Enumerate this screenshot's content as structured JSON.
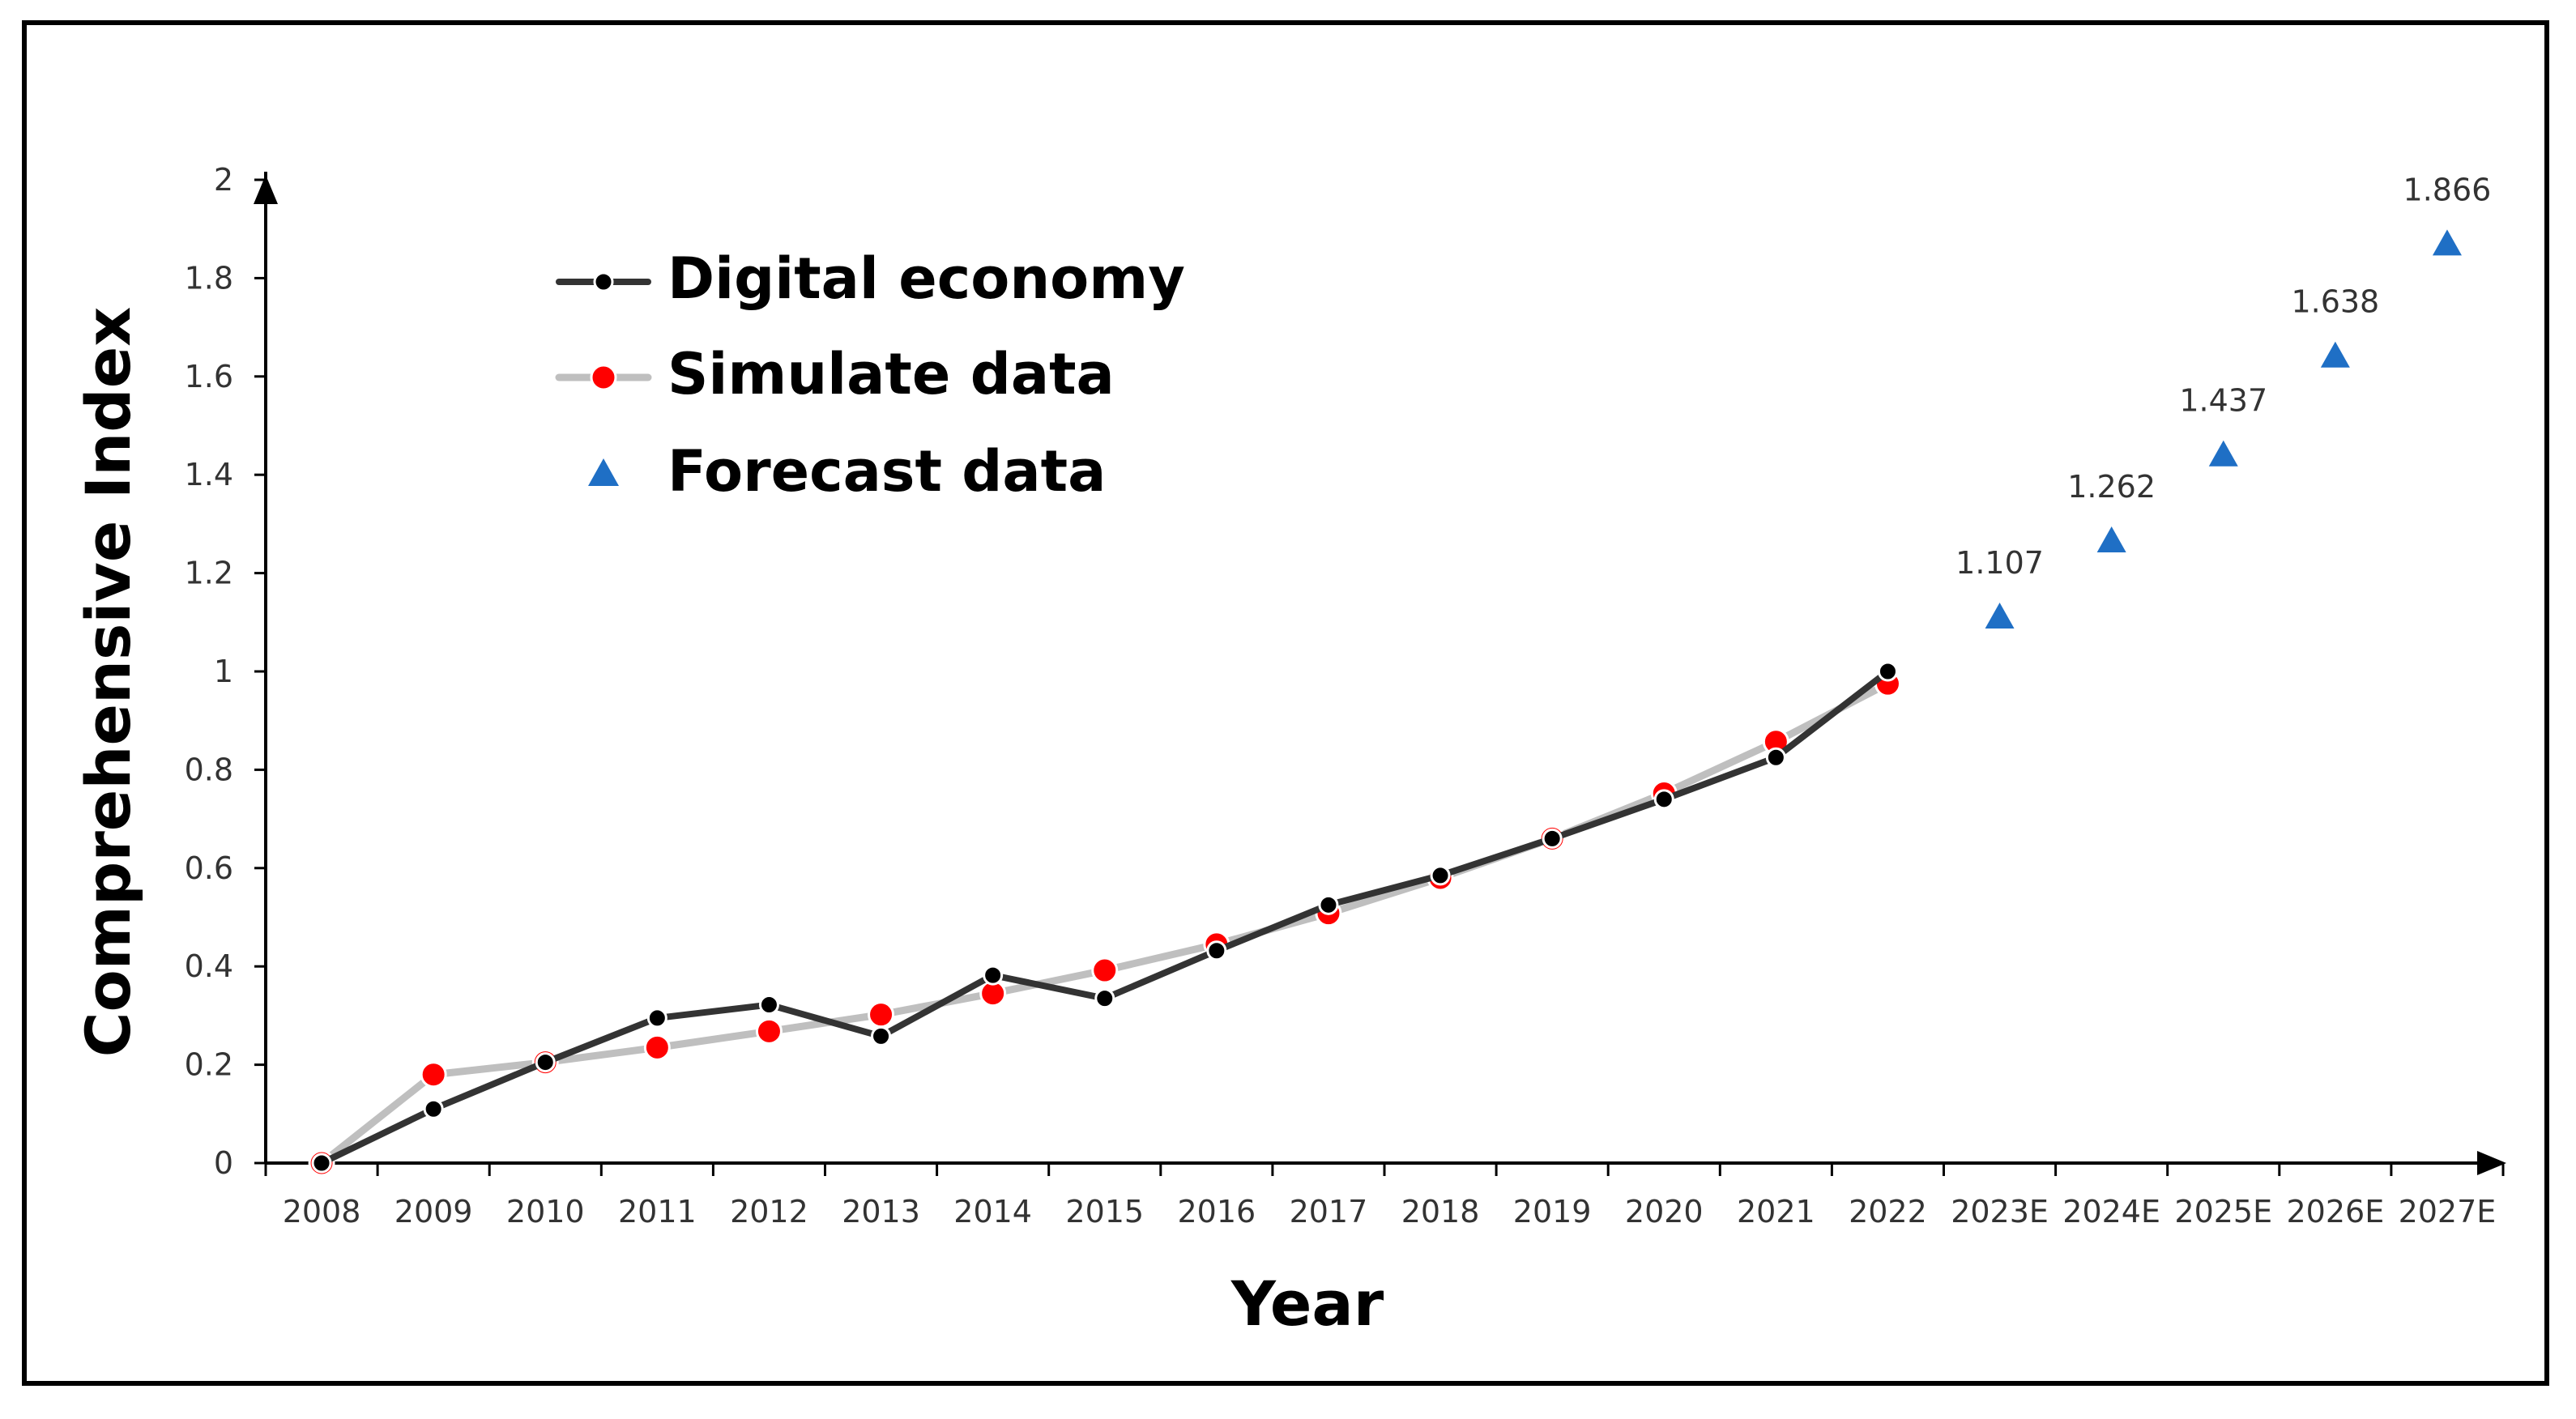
{
  "chart_data": {
    "type": "line",
    "title": "",
    "xlabel": "Year",
    "ylabel": "Comprehensive Index",
    "ylim": [
      0,
      2
    ],
    "yticks": [
      0,
      0.2,
      0.4,
      0.6,
      0.8,
      1,
      1.2,
      1.4,
      1.6,
      1.8,
      2
    ],
    "ytick_labels": [
      "0",
      "0.2",
      "0.4",
      "0.6",
      "0.8",
      "1",
      "1.2",
      "1.4",
      "1.6",
      "1.8",
      "2"
    ],
    "categories": [
      "2008",
      "2009",
      "2010",
      "2011",
      "2012",
      "2013",
      "2014",
      "2015",
      "2016",
      "2017",
      "2018",
      "2019",
      "2020",
      "2021",
      "2022",
      "2023E",
      "2024E",
      "2025E",
      "2026E",
      "2027E"
    ],
    "series": [
      {
        "name": "Digital economy",
        "marker": "circle",
        "line_color": "#333333",
        "marker_color": "#000000",
        "values": [
          0.0,
          0.11,
          0.205,
          0.295,
          0.322,
          0.258,
          0.382,
          0.335,
          0.432,
          0.525,
          0.585,
          0.66,
          0.74,
          0.825,
          1.0,
          null,
          null,
          null,
          null,
          null
        ]
      },
      {
        "name": "Simulate data",
        "marker": "circle",
        "line_color": "#bfbfbf",
        "marker_color": "#ff0000",
        "values": [
          0.0,
          0.18,
          0.205,
          0.235,
          0.268,
          0.302,
          0.345,
          0.392,
          0.445,
          0.508,
          0.58,
          0.66,
          0.752,
          0.857,
          0.975,
          null,
          null,
          null,
          null,
          null
        ]
      },
      {
        "name": "Forecast data",
        "marker": "triangle",
        "marker_color": "#1f6fc5",
        "values": [
          null,
          null,
          null,
          null,
          null,
          null,
          null,
          null,
          null,
          null,
          null,
          null,
          null,
          null,
          null,
          1.107,
          1.262,
          1.437,
          1.638,
          1.866
        ],
        "labels": [
          "1.107",
          "1.262",
          "1.437",
          "1.638",
          "1.866"
        ]
      }
    ],
    "legend": {
      "position": "top-left",
      "entries": [
        "Digital economy",
        "Simulate data",
        "Forecast data"
      ]
    }
  }
}
